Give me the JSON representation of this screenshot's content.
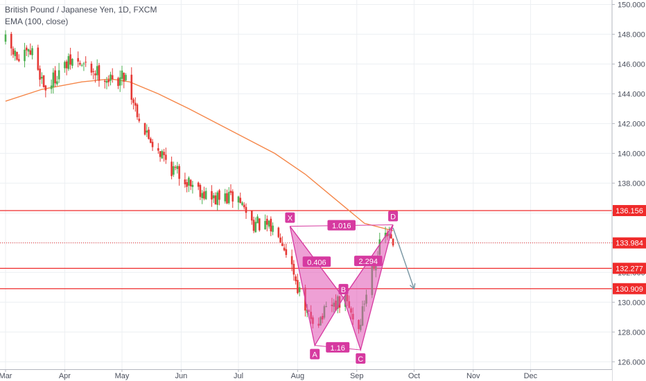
{
  "header": {
    "symbol_title": "British Pound / Japanese Yen, 1D, FXCM",
    "indicator": "EMA (100, close)"
  },
  "colors": {
    "up": "#4caf50",
    "down": "#e53935",
    "ema": "#f5874a",
    "level_line": "#ef2b2b",
    "pattern_fill": "#e052b2",
    "pattern_stroke": "#d63aa0",
    "projection_arrow": "#7e9aa6",
    "grid": "#eceff2",
    "axis_text": "#4a4f5c"
  },
  "chart_data": {
    "type": "candlestick",
    "y_axis": {
      "side": "right",
      "range": [
        125.5,
        150.3
      ],
      "ticks": [
        126.0,
        128.0,
        130.0,
        132.0,
        134.0,
        136.0,
        138.0,
        140.0,
        142.0,
        144.0,
        146.0,
        148.0,
        150.0
      ],
      "tick_labels": [
        "126.000",
        "128.000",
        "130.000",
        "132.000",
        "134.000",
        "136.000",
        "138.000",
        "140.000",
        "142.000",
        "144.000",
        "146.000",
        "148.000",
        "150.000"
      ]
    },
    "x_axis": {
      "range": [
        "2019-03-01",
        "2019-12-31"
      ],
      "ticks": [
        {
          "date": "2019-03-01",
          "label": "Mar"
        },
        {
          "date": "2019-04-01",
          "label": "Apr"
        },
        {
          "date": "2019-05-01",
          "label": "May"
        },
        {
          "date": "2019-06-01",
          "label": "Jun"
        },
        {
          "date": "2019-07-01",
          "label": "Jul"
        },
        {
          "date": "2019-08-01",
          "label": "Aug"
        },
        {
          "date": "2019-09-01",
          "label": "Sep"
        },
        {
          "date": "2019-10-01",
          "label": "Oct"
        },
        {
          "date": "2019-11-01",
          "label": "Nov"
        },
        {
          "date": "2019-12-01",
          "label": "Dec"
        }
      ]
    },
    "grid": true,
    "close_path": [
      [
        "2019-03-01",
        147.5
      ],
      [
        "2019-03-08",
        146.2
      ],
      [
        "2019-03-15",
        146.8
      ],
      [
        "2019-03-22",
        144.3
      ],
      [
        "2019-03-29",
        145.5
      ],
      [
        "2019-04-05",
        146.2
      ],
      [
        "2019-04-12",
        145.8
      ],
      [
        "2019-04-19",
        145.4
      ],
      [
        "2019-04-26",
        144.8
      ],
      [
        "2019-05-03",
        145.3
      ],
      [
        "2019-05-06",
        143.9
      ],
      [
        "2019-05-13",
        141.4
      ],
      [
        "2019-05-20",
        140.3
      ],
      [
        "2019-05-27",
        139.0
      ],
      [
        "2019-06-03",
        138.3
      ],
      [
        "2019-06-10",
        137.7
      ],
      [
        "2019-06-17",
        136.9
      ],
      [
        "2019-06-24",
        137.0
      ],
      [
        "2019-07-01",
        137.0
      ],
      [
        "2019-07-08",
        135.4
      ],
      [
        "2019-07-15",
        135.0
      ],
      [
        "2019-07-22",
        134.9
      ],
      [
        "2019-07-29",
        132.5
      ],
      [
        "2019-08-05",
        129.2
      ],
      [
        "2019-08-12",
        128.8
      ],
      [
        "2019-08-19",
        129.7
      ],
      [
        "2019-08-26",
        130.1
      ],
      [
        "2019-09-02",
        128.2
      ],
      [
        "2019-09-09",
        132.5
      ],
      [
        "2019-09-16",
        134.6
      ],
      [
        "2019-09-20",
        133.98
      ]
    ],
    "ema_100": [
      [
        "2019-03-01",
        143.5
      ],
      [
        "2019-03-20",
        144.3
      ],
      [
        "2019-04-10",
        144.8
      ],
      [
        "2019-04-25",
        145.0
      ],
      [
        "2019-05-05",
        144.8
      ],
      [
        "2019-05-20",
        144.0
      ],
      [
        "2019-06-05",
        143.0
      ],
      [
        "2019-06-20",
        142.0
      ],
      [
        "2019-07-05",
        141.0
      ],
      [
        "2019-07-20",
        140.0
      ],
      [
        "2019-08-05",
        138.6
      ],
      [
        "2019-08-20",
        137.0
      ],
      [
        "2019-09-05",
        135.3
      ],
      [
        "2019-09-20",
        134.8
      ]
    ],
    "horizontal_levels": [
      {
        "price": 136.156,
        "label": "136.156",
        "style": "solid"
      },
      {
        "price": 133.984,
        "label": "133.984",
        "style": "dotted",
        "is_last_price": true
      },
      {
        "price": 132.277,
        "label": "132.277",
        "style": "solid"
      },
      {
        "price": 130.909,
        "label": "130.909",
        "style": "solid"
      }
    ],
    "pattern": {
      "points": [
        {
          "label": "X",
          "date": "2019-07-28",
          "price": 135.1
        },
        {
          "label": "A",
          "date": "2019-08-10",
          "price": 127.1
        },
        {
          "label": "B",
          "date": "2019-08-25",
          "price": 130.3
        },
        {
          "label": "C",
          "date": "2019-09-03",
          "price": 126.8
        },
        {
          "label": "D",
          "date": "2019-09-20",
          "price": 135.2
        }
      ],
      "ratios": [
        {
          "label": "1.016",
          "between": [
            "X",
            "D"
          ]
        },
        {
          "label": "0.406",
          "between": [
            "X",
            "B"
          ]
        },
        {
          "label": "1.16",
          "between": [
            "A",
            "C"
          ]
        },
        {
          "label": "2.294",
          "between": [
            "B",
            "D"
          ]
        }
      ],
      "projection": {
        "from": [
          "2019-09-20",
          135.0
        ],
        "to": [
          "2019-10-01",
          130.9
        ]
      }
    }
  }
}
